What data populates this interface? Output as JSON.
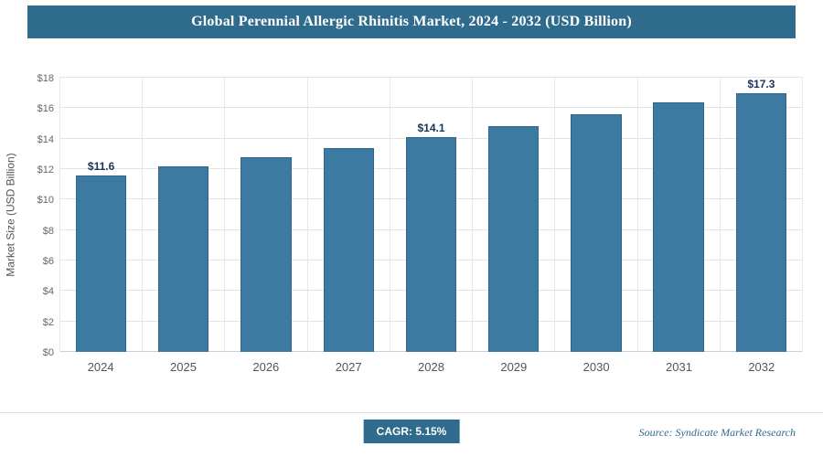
{
  "header": {
    "title": "Global Perennial Allergic Rhinitis Market, 2024 - 2032 (USD Billion)"
  },
  "chart_data": {
    "type": "bar",
    "title": "Global Perennial Allergic Rhinitis Market, 2024 - 2032 (USD Billion)",
    "categories": [
      "2024",
      "2025",
      "2026",
      "2027",
      "2028",
      "2029",
      "2030",
      "2031",
      "2032"
    ],
    "values": [
      11.6,
      12.2,
      12.8,
      13.4,
      14.1,
      14.8,
      15.6,
      16.4,
      17.3
    ],
    "data_labels": [
      "$11.6",
      null,
      null,
      null,
      "$14.1",
      null,
      null,
      null,
      "$17.3"
    ],
    "xlabel": "",
    "ylabel": "Market Size (USD Billion)",
    "ylim": [
      0,
      18
    ],
    "ytick_step": 2,
    "ytick_prefix": "$",
    "grid": true,
    "legend": "none",
    "bar_color": "#3d7aa1",
    "accent_color": "#2e6b8c"
  },
  "footer": {
    "cagr_label": "CAGR: 5.15%",
    "source": "Source: Syndicate Market Research"
  }
}
